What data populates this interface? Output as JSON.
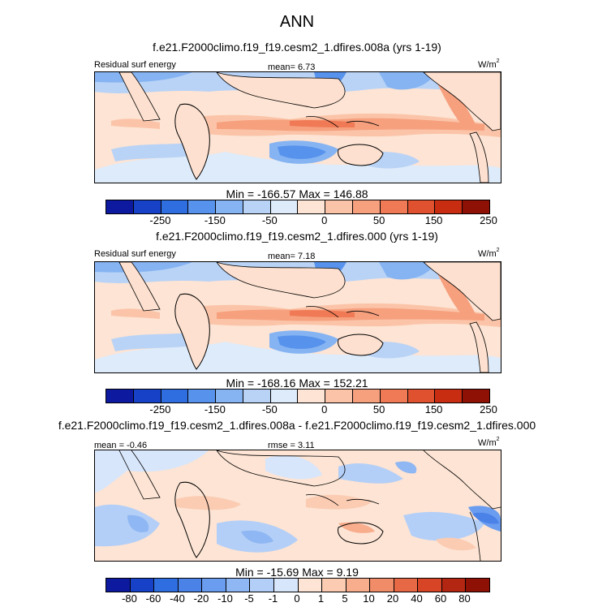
{
  "title": "ANN",
  "colors": {
    "land": "#fde0cf",
    "coast": "#000000",
    "ocean_base": "#fde4d4"
  },
  "panels": [
    {
      "title": "f.e21.F2000climo.f19_f19.cesm2_1.dfires.008a (yrs 1-19)",
      "left_label": "Residual surf energy",
      "center_label": "mean=   6.73",
      "units": "W/m",
      "units_sup": "2",
      "minmax": "Min = -166.57 Max = 146.88",
      "colorbar_ticks": [
        "-250",
        "-150",
        "-50",
        "0",
        "50",
        "150",
        "250"
      ],
      "colors": [
        "#0d1aa0",
        "#1742c8",
        "#2f6ee0",
        "#5792ec",
        "#86b4f2",
        "#b9d3f6",
        "#deebfa",
        "#fde4d4",
        "#fbc4a8",
        "#f6a07e",
        "#ef7a55",
        "#e0512f",
        "#c82d12",
        "#8f1106"
      ]
    },
    {
      "title": "f.e21.F2000climo.f19_f19.cesm2_1.dfires.000 (yrs 1-19)",
      "left_label": "Residual surf energy",
      "center_label": "mean=   7.18",
      "units": "W/m",
      "units_sup": "2",
      "minmax": "Min = -168.16 Max = 152.21",
      "colorbar_ticks": [
        "-250",
        "-150",
        "-50",
        "0",
        "50",
        "150",
        "250"
      ],
      "colors": [
        "#0d1aa0",
        "#1742c8",
        "#2f6ee0",
        "#5792ec",
        "#86b4f2",
        "#b9d3f6",
        "#deebfa",
        "#fde4d4",
        "#fbc4a8",
        "#f6a07e",
        "#ef7a55",
        "#e0512f",
        "#c82d12",
        "#8f1106"
      ]
    },
    {
      "title": "f.e21.F2000climo.f19_f19.cesm2_1.dfires.008a - f.e21.F2000climo.f19_f19.cesm2_1.dfires.000",
      "left_label": "mean = -0.46",
      "center_label": "rmse =  3.11",
      "units": "W/m",
      "units_sup": "2",
      "minmax": "Min = -15.69 Max =   9.19",
      "colorbar_ticks": [
        "-80",
        "-60",
        "-40",
        "-20",
        "-10",
        "-5",
        "-1",
        "0",
        "1",
        "5",
        "10",
        "20",
        "40",
        "60",
        "80"
      ],
      "colors": [
        "#0d1aa0",
        "#1742c8",
        "#2f6ee0",
        "#4a82e8",
        "#6a9cef",
        "#8fb7f3",
        "#b4cff7",
        "#d8e6fb",
        "#fde4d4",
        "#fbcbb2",
        "#f8ad8d",
        "#f18c68",
        "#e76845",
        "#d84526",
        "#b32712",
        "#8f1106"
      ]
    }
  ]
}
